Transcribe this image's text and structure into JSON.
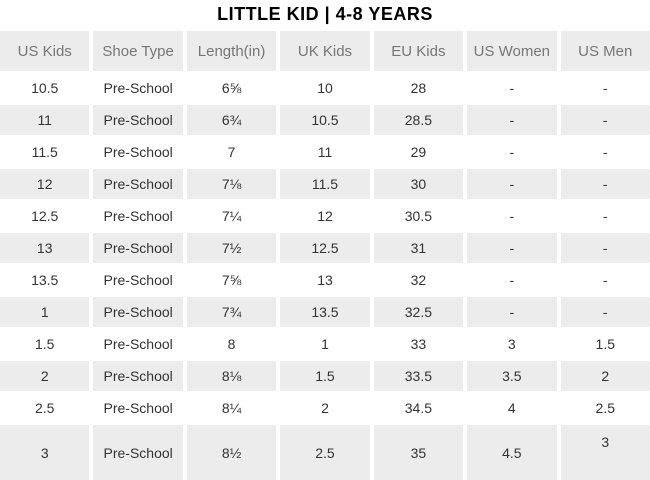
{
  "page": {
    "title": "LITTLE KID | 4-8 YEARS"
  },
  "colors": {
    "header_bg": "#ececec",
    "row_alt_bg": "#ececec",
    "header_text": "#767676",
    "body_text": "#333333",
    "title_text": "#000000"
  },
  "chart_data": {
    "type": "table",
    "title": "LITTLE KID | 4-8 YEARS",
    "columns": [
      "US Kids",
      "Shoe Type",
      "Length(in)",
      "UK Kids",
      "EU Kids",
      "US Women",
      "US Men"
    ],
    "rows": [
      [
        "10.5",
        "Pre-School",
        "6⅝",
        "10",
        "28",
        "-",
        "-"
      ],
      [
        "11",
        "Pre-School",
        "6¾",
        "10.5",
        "28.5",
        "-",
        "-"
      ],
      [
        "11.5",
        "Pre-School",
        "7",
        "11",
        "29",
        "-",
        "-"
      ],
      [
        "12",
        "Pre-School",
        "7⅛",
        "11.5",
        "30",
        "-",
        "-"
      ],
      [
        "12.5",
        "Pre-School",
        "7¼",
        "12",
        "30.5",
        "-",
        "-"
      ],
      [
        "13",
        "Pre-School",
        "7½",
        "12.5",
        "31",
        "-",
        "-"
      ],
      [
        "13.5",
        "Pre-School",
        "7⅝",
        "13",
        "32",
        "-",
        "-"
      ],
      [
        "1",
        "Pre-School",
        "7¾",
        "13.5",
        "32.5",
        "-",
        "-"
      ],
      [
        "1.5",
        "Pre-School",
        "8",
        "1",
        "33",
        "3",
        "1.5"
      ],
      [
        "2",
        "Pre-School",
        "8⅛",
        "1.5",
        "33.5",
        "3.5",
        "2"
      ],
      [
        "2.5",
        "Pre-School",
        "8¼",
        "2",
        "34.5",
        "4",
        "2.5"
      ],
      [
        "3",
        "Pre-School",
        "8½",
        "2.5",
        "35",
        "4.5",
        "3"
      ]
    ]
  }
}
